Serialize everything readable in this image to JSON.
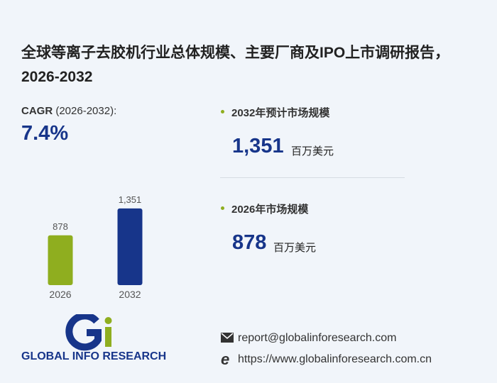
{
  "title": "全球等离子去胶机行业总体规模、主要厂商及IPO上市调研报告，2026-2032",
  "cagr": {
    "label": "CAGR",
    "period": "(2026-2032):",
    "value": "7.4%"
  },
  "stats": [
    {
      "label": "2032年预计市场规模",
      "value": "1,351",
      "unit": "百万美元"
    },
    {
      "label": "2026年市场规模",
      "value": "878",
      "unit": "百万美元"
    }
  ],
  "chart_data": {
    "type": "bar",
    "categories": [
      "2026",
      "2032"
    ],
    "values": [
      878,
      1351
    ],
    "value_labels": [
      "878",
      "1,351"
    ],
    "colors": [
      "#8fae1f",
      "#17358a"
    ]
  },
  "logo": {
    "text": "GLOBAL INFO RESEARCH"
  },
  "contact": {
    "email": "report@globalinforesearch.com",
    "website": "https://www.globalinforesearch.com.cn"
  }
}
